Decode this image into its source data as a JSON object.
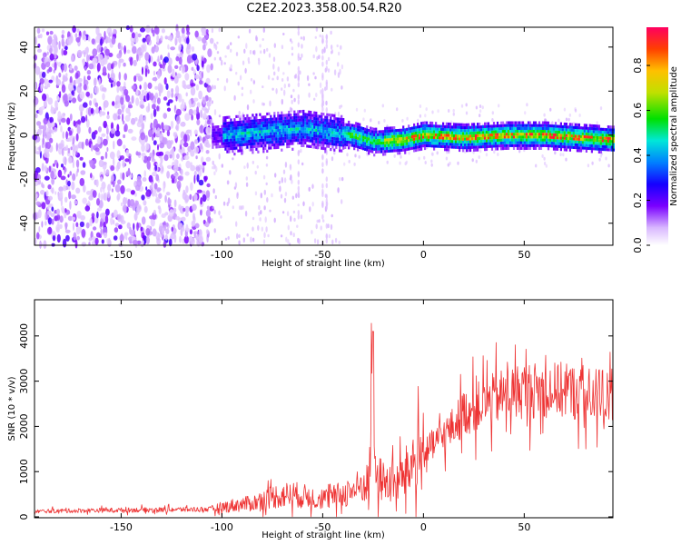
{
  "title": "C2E2.2023.358.00.54.R20",
  "chart_data": [
    {
      "type": "heatmap",
      "xlabel": "Height of straight line (km)",
      "ylabel": "Frequency (Hz)",
      "xlim": [
        -193,
        94
      ],
      "ylim": [
        -50,
        49
      ],
      "xticks": [
        -150,
        -100,
        -50,
        0,
        50
      ],
      "yticks": [
        -40,
        -20,
        0,
        20,
        40
      ],
      "colorbar": {
        "label": "Normalized spectral amplitude",
        "range": [
          0,
          0.97
        ],
        "ticks": [
          0.0,
          0.2,
          0.4,
          0.6,
          0.8
        ]
      },
      "ridge": {
        "description_points": [
          {
            "x": -100,
            "y": 0
          },
          {
            "x": -75,
            "y": 2
          },
          {
            "x": -60,
            "y": 3
          },
          {
            "x": -45,
            "y": 1
          },
          {
            "x": -35,
            "y": 0
          },
          {
            "x": -25,
            "y": -3
          },
          {
            "x": -10,
            "y": -2
          },
          {
            "x": 0,
            "y": 0
          },
          {
            "x": 20,
            "y": -1
          },
          {
            "x": 40,
            "y": 0
          },
          {
            "x": 60,
            "y": 0
          },
          {
            "x": 93,
            "y": -2
          }
        ]
      }
    },
    {
      "type": "line",
      "xlabel": "Height of straight line (km)",
      "ylabel": "SNR (10 * v/v)",
      "xlim": [
        -193,
        94
      ],
      "ylim": [
        -20,
        4800
      ],
      "xticks": [
        -150,
        -100,
        -50,
        0,
        50
      ],
      "yticks": [
        0,
        1000,
        2000,
        3000,
        4000
      ],
      "color": "#ee3333",
      "series": [
        {
          "x": [
            -193,
            -170,
            -150,
            -125,
            -105,
            -95,
            -85,
            -75,
            -65,
            -55,
            -48,
            -40,
            -35,
            -30,
            -27,
            -25,
            -24,
            -20,
            -15,
            -10,
            -5,
            0,
            5,
            10,
            15,
            20,
            25,
            30,
            40,
            50,
            60,
            70,
            80,
            94
          ],
          "values": [
            120,
            140,
            150,
            160,
            170,
            250,
            300,
            450,
            500,
            420,
            400,
            500,
            600,
            700,
            800,
            4100,
            900,
            800,
            700,
            900,
            1200,
            1400,
            1600,
            1800,
            2000,
            2300,
            2400,
            2500,
            2700,
            2800,
            2800,
            2800,
            2700,
            2700
          ]
        }
      ]
    }
  ],
  "colors": {
    "line": "#ee3333",
    "colormap": [
      "#f5f0ff",
      "#d9b8ff",
      "#9a50ff",
      "#6a00ff",
      "#1a00ff",
      "#0080ff",
      "#00e5d0",
      "#00dd00",
      "#b0e000",
      "#ffd000",
      "#ff7000",
      "#ff0040"
    ]
  }
}
